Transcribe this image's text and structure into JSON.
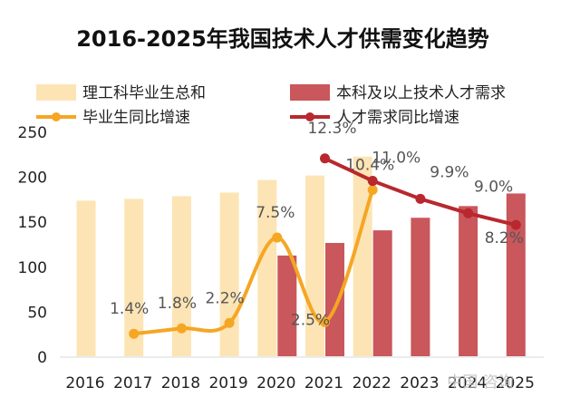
{
  "chart_data": {
    "type": "bar",
    "title": "2016-2025年我国技术人才供需变化趋势",
    "categories": [
      "2016",
      "2017",
      "2018",
      "2019",
      "2020",
      "2021",
      "2022",
      "2023",
      "2024",
      "2025"
    ],
    "ylim": [
      0,
      250
    ],
    "yticks": [
      0,
      50,
      100,
      150,
      200,
      250
    ],
    "bar_series": [
      {
        "name": "理工科毕业生总和",
        "color": "#fde4b4",
        "values": [
          173,
          175,
          178,
          182,
          196,
          201,
          222,
          null,
          null,
          null
        ]
      },
      {
        "name": "本科及以上技术人才需求",
        "color": "#c9575b",
        "values": [
          null,
          null,
          null,
          null,
          112,
          126,
          140,
          154,
          167,
          181
        ]
      }
    ],
    "line_series": [
      {
        "name": "毕业生同比增速",
        "color": "#f5a623",
        "values": [
          null,
          25,
          31,
          37,
          132,
          38,
          185,
          null,
          null,
          null
        ],
        "labels": [
          null,
          "1.4%",
          "1.8%",
          "2.2%",
          "7.5%",
          "2.5%",
          "10.4%",
          null,
          null,
          null
        ]
      },
      {
        "name": "人才需求同比增速",
        "color": "#b8282e",
        "values": [
          null,
          null,
          null,
          null,
          null,
          220,
          195,
          175,
          159,
          146
        ],
        "labels": [
          null,
          null,
          null,
          null,
          null,
          "12.3%",
          "11.0%",
          "9.9%",
          "9.0%",
          "8.2%"
        ]
      }
    ],
    "watermark": "中国·咨询"
  }
}
